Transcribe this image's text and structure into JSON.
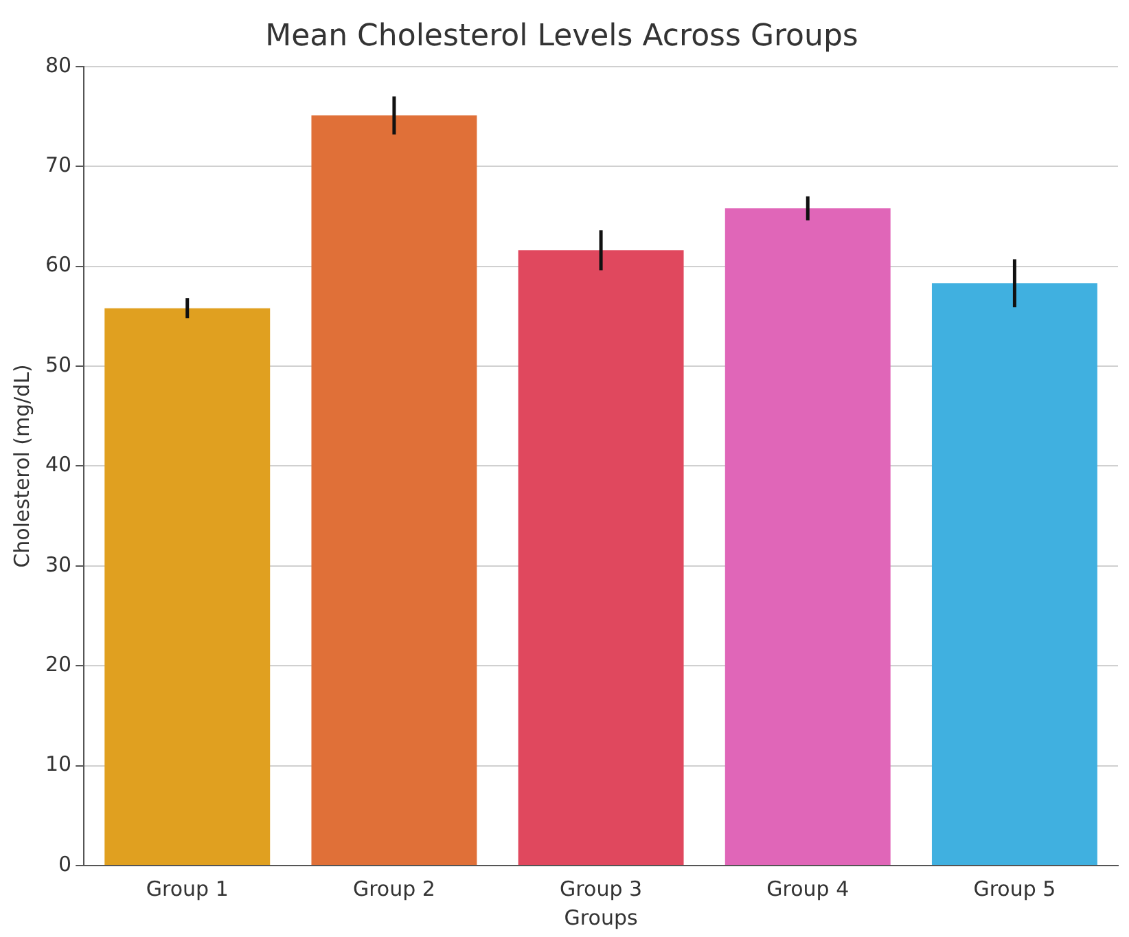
{
  "chart_data": {
    "type": "bar",
    "title": "Mean Cholesterol Levels Across Groups",
    "xlabel": "Groups",
    "ylabel": "Cholesterol (mg/dL)",
    "categories": [
      "Group 1",
      "Group 2",
      "Group 3",
      "Group 4",
      "Group 5"
    ],
    "values": [
      55.8,
      75.1,
      61.6,
      65.8,
      58.3
    ],
    "errors": [
      1.0,
      1.9,
      2.0,
      1.2,
      2.4
    ],
    "colors": [
      "#e0a020",
      "#e07038",
      "#e0485e",
      "#e066b8",
      "#40b0e0"
    ],
    "ylim": [
      0,
      80
    ],
    "yticks": [
      0,
      10,
      20,
      30,
      40,
      50,
      60,
      70,
      80
    ],
    "grid": "y",
    "legend": false
  }
}
